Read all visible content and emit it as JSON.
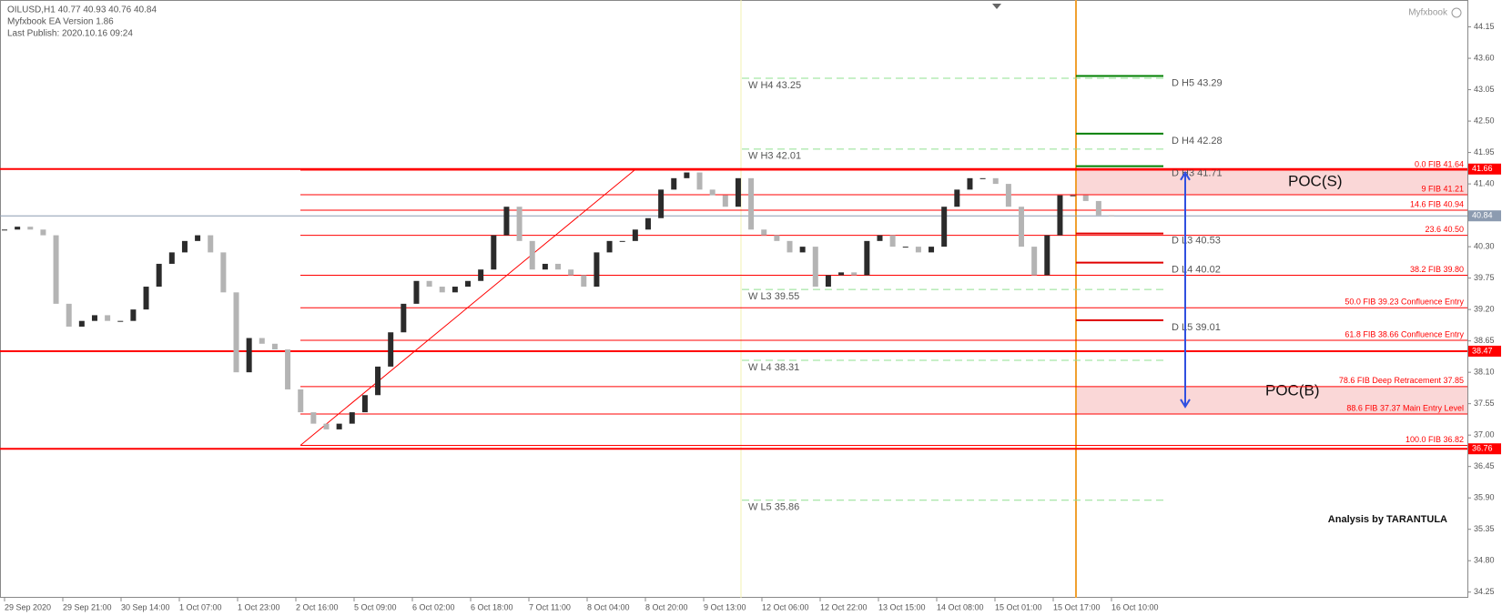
{
  "header": {
    "symbol": "OILUSD,H1  40.77 40.93 40.76 40.84",
    "version": "Myfxbook EA Version 1.86",
    "published": "Last Publish: 2020.10.16 09:24",
    "brand": "Myfxbook"
  },
  "chart_data": {
    "type": "candlestick",
    "closes": [
      40.6,
      40.65,
      40.6,
      40.5,
      39.3,
      38.9,
      39.0,
      39.1,
      39.0,
      39.0,
      39.2,
      39.6,
      40.0,
      40.2,
      40.4,
      40.5,
      40.2,
      39.5,
      38.1,
      38.7,
      38.6,
      38.5,
      37.8,
      37.4,
      37.2,
      37.1,
      37.2,
      37.4,
      37.7,
      38.2,
      38.8,
      39.3,
      39.7,
      39.6,
      39.5,
      39.6,
      39.7,
      39.9,
      40.5,
      41.0,
      40.4,
      39.9,
      40.0,
      39.9,
      39.8,
      39.6,
      40.2,
      40.4,
      40.4,
      40.6,
      40.8,
      41.3,
      41.5,
      41.6,
      41.3,
      41.2,
      41.0,
      41.5,
      40.6,
      40.5,
      40.4,
      40.2,
      40.3,
      39.6,
      39.8,
      39.85,
      39.8,
      40.4,
      40.5,
      40.3,
      40.3,
      40.2,
      40.3,
      41.0,
      41.3,
      41.5,
      41.5,
      41.4,
      41.0,
      40.3,
      39.8,
      40.5,
      41.2,
      41.2,
      41.1,
      40.85,
      40.84
    ],
    "bull_color": "#2b2b2b",
    "bear_color": "#b4b4b4",
    "ylim": [
      34.15,
      44.35
    ],
    "yticks": [
      44.15,
      {
        "value": 43.6,
        "label": "43.60"
      },
      43.05,
      {
        "value": 42.5,
        "label": "42.50"
      },
      41.95,
      {
        "value": 41.4,
        "label": "41.40"
      },
      40.85,
      {
        "value": 40.3,
        "label": "40.30"
      },
      39.75,
      {
        "value": 39.2,
        "label": "39.20"
      },
      38.65,
      {
        "value": 38.1,
        "label": "38.10"
      },
      37.55,
      {
        "value": 37.0,
        "label": "37.00"
      },
      36.45,
      {
        "value": 35.9,
        "label": "35.90"
      },
      35.35,
      {
        "value": 34.8,
        "label": "34.80"
      },
      34.25
    ],
    "xticklabels": [
      "29 Sep 2020",
      "29 Sep 21:00",
      "30 Sep 14:00",
      "1 Oct 07:00",
      "1 Oct 23:00",
      "2 Oct 16:00",
      "5 Oct 09:00",
      "6 Oct 02:00",
      "6 Oct 18:00",
      "7 Oct 11:00",
      "8 Oct 04:00",
      "8 Oct 20:00",
      "9 Oct 13:00",
      "12 Oct 06:00",
      "12 Oct 22:00",
      "13 Oct 15:00",
      "14 Oct 08:00",
      "15 Oct 01:00",
      "15 Oct 17:00",
      "16 Oct 10:00"
    ],
    "levels": [
      41.66,
      38.47,
      36.76
    ],
    "level_color": "#ff0000",
    "current": 40.84,
    "current_color": "#8c9bb0",
    "fib_color": "#ff0000",
    "fib": [
      {
        "label": "0.0 FIB 41.64",
        "value": 41.64
      },
      {
        "label": "9 FIB 41.21",
        "value": 41.21
      },
      {
        "label": "14.6 FIB 40.94",
        "value": 40.94
      },
      {
        "label": "23.6  40.50",
        "value": 40.5
      },
      {
        "label": "38.2 FIB 39.80",
        "value": 39.8
      },
      {
        "label": "50.0 FIB 39.23 Confluence Entry",
        "value": 39.23
      },
      {
        "label": "61.8 FIB 38.66 Confluence Entry",
        "value": 38.66
      },
      {
        "label": "78.6 FIB Deep Retracement 37.85",
        "value": 37.85
      },
      {
        "label": "88.6 FIB 37.37 Main Entry Level",
        "value": 37.37
      },
      {
        "label": "100.0 FIB 36.82",
        "value": 36.82
      }
    ],
    "weekly_color": "#90e090",
    "weekly": [
      {
        "label": "W  H4 43.25",
        "value": 43.25
      },
      {
        "label": "W  H3 42.01",
        "value": 42.01
      },
      {
        "label": "W  L3 39.55",
        "value": 39.55
      },
      {
        "label": "W  L4 38.31",
        "value": 38.31
      },
      {
        "label": "W  L5 35.86",
        "value": 35.86
      }
    ],
    "daily": [
      {
        "label": "D  H5 43.29",
        "value": 43.29,
        "color": "#008000"
      },
      {
        "label": "D  H4 42.28",
        "value": 42.28,
        "color": "#008000"
      },
      {
        "label": "D  H3 41.71",
        "value": 41.71,
        "color": "#008000"
      },
      {
        "label": "D  L3 40.53",
        "value": 40.53,
        "color": "#e00000"
      },
      {
        "label": "D  L4 40.02",
        "value": 40.02,
        "color": "#e00000"
      },
      {
        "label": "D  L5 39.01",
        "value": 39.01,
        "color": "#e00000"
      }
    ],
    "zones": [
      {
        "label": "POC(S)",
        "from": 41.21,
        "to": 41.66
      },
      {
        "label": "POC(B)",
        "from": 37.37,
        "to": 37.85
      }
    ],
    "annotation": "Analysis by TARANTULA"
  }
}
